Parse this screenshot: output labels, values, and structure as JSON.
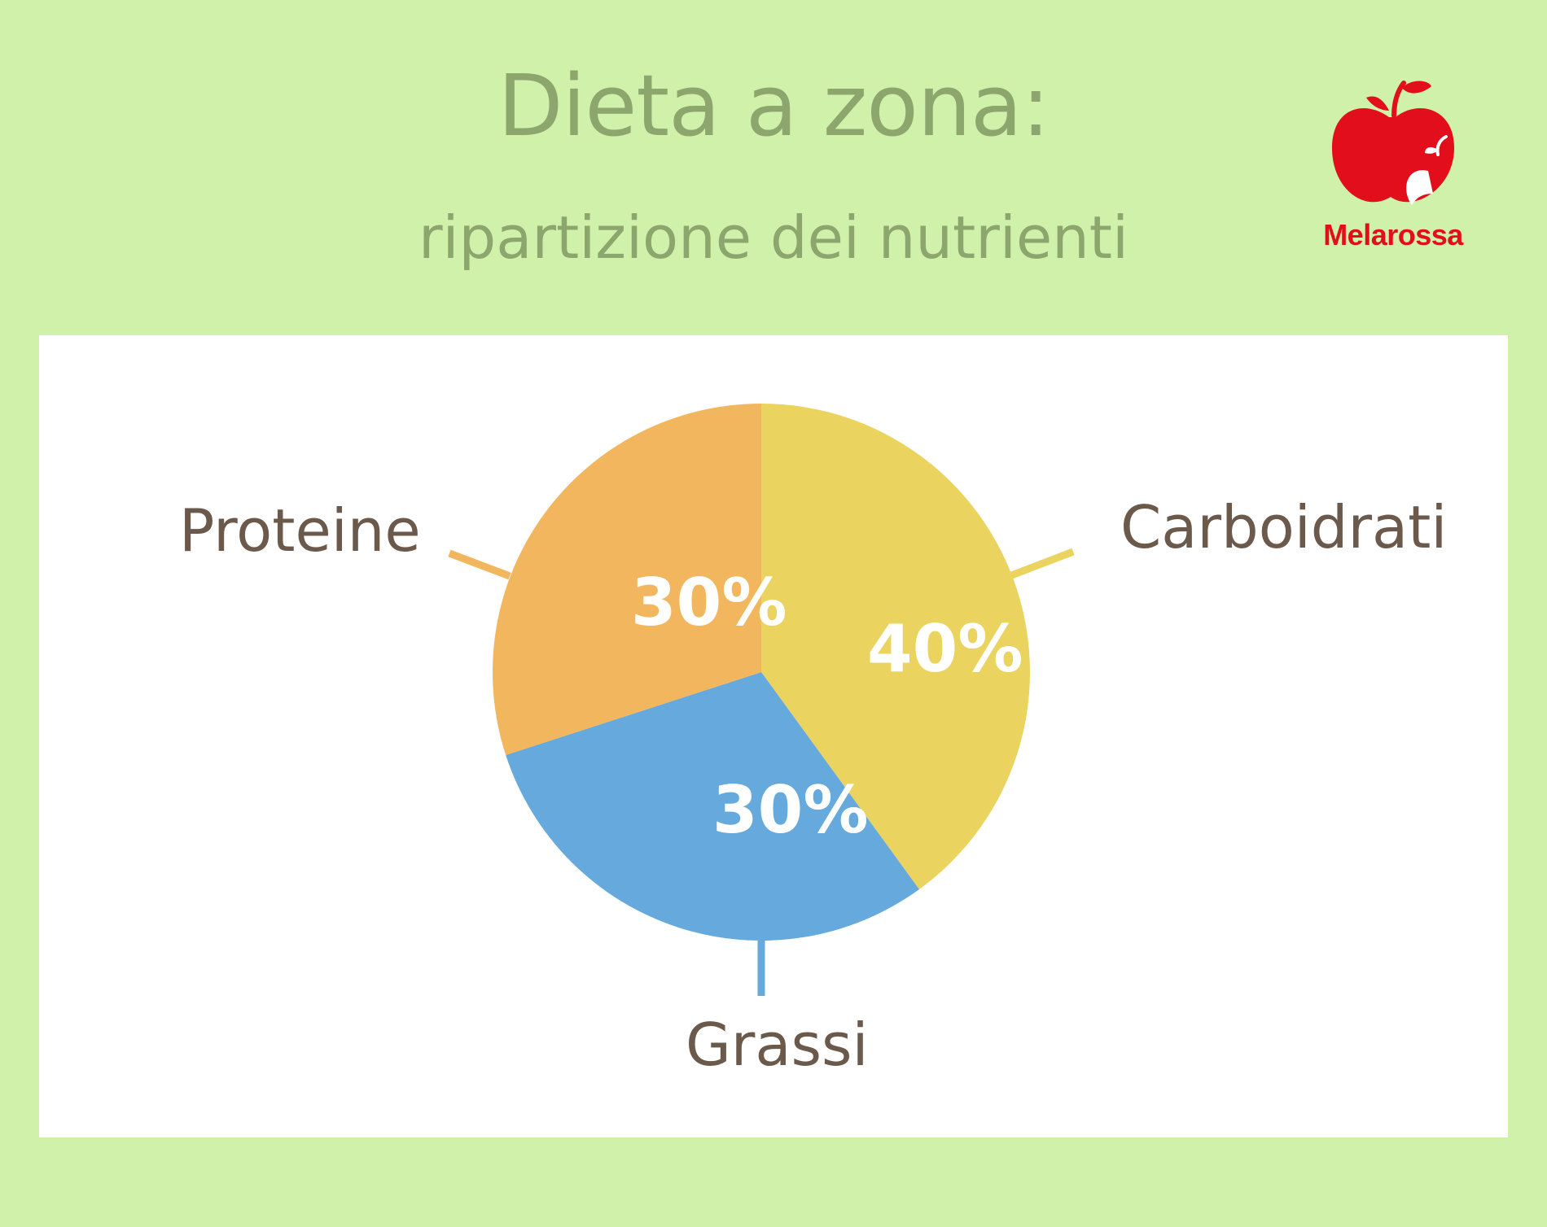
{
  "header": {
    "title": "Dieta a zona:",
    "subtitle": "ripartizione dei nutrienti"
  },
  "brand": {
    "name": "Melarossa",
    "logo_icon": "apple-icon",
    "color": "#e30e1b"
  },
  "chart_data": {
    "type": "pie",
    "slices": [
      {
        "name": "Carboidrati",
        "value": 40,
        "label": "40%",
        "color": "#ebd360"
      },
      {
        "name": "Grassi",
        "value": 30,
        "label": "30%",
        "color": "#66a9dd"
      },
      {
        "name": "Proteine",
        "value": 30,
        "label": "30%",
        "color": "#f1b65e"
      }
    ]
  }
}
